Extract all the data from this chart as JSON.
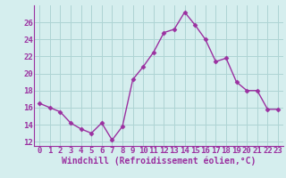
{
  "x": [
    0,
    1,
    2,
    3,
    4,
    5,
    6,
    7,
    8,
    9,
    10,
    11,
    12,
    13,
    14,
    15,
    16,
    17,
    18,
    19,
    20,
    21,
    22,
    23
  ],
  "y": [
    16.5,
    16.0,
    15.5,
    14.2,
    13.5,
    13.0,
    14.2,
    12.2,
    13.8,
    19.3,
    20.8,
    22.5,
    24.8,
    25.2,
    27.2,
    25.7,
    24.0,
    21.4,
    21.8,
    19.0,
    18.0,
    18.0,
    15.8,
    15.8
  ],
  "line_color": "#9b30a0",
  "marker": "D",
  "marker_size": 2.5,
  "bg_color": "#d5eeee",
  "grid_color": "#aed4d4",
  "xlabel": "Windchill (Refroidissement éolien,°C)",
  "ylim": [
    11.5,
    28.0
  ],
  "xlim": [
    -0.5,
    23.5
  ],
  "yticks": [
    12,
    14,
    16,
    18,
    20,
    22,
    24,
    26
  ],
  "xticks": [
    0,
    1,
    2,
    3,
    4,
    5,
    6,
    7,
    8,
    9,
    10,
    11,
    12,
    13,
    14,
    15,
    16,
    17,
    18,
    19,
    20,
    21,
    22,
    23
  ],
  "font_color": "#9b30a0",
  "tick_font_size": 6.5,
  "label_font_size": 7.0,
  "linewidth": 1.0
}
